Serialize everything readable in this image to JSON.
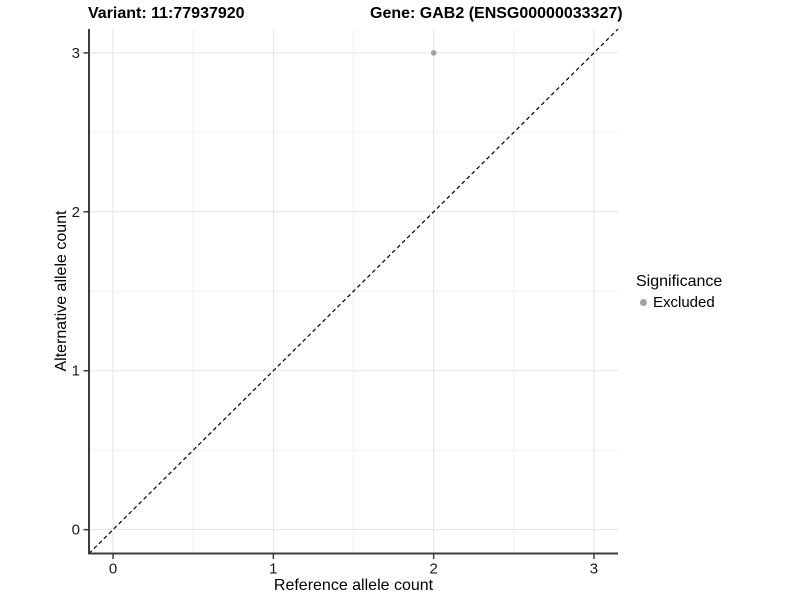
{
  "chart_data": {
    "type": "scatter",
    "title_left": "Variant: 11:77937920",
    "title_right": "Gene: GAB2 (ENSG00000033327)",
    "xlabel": "Reference allele count",
    "ylabel": "Alternative allele count",
    "xlim": [
      -0.15,
      3.15
    ],
    "ylim": [
      -0.15,
      3.15
    ],
    "xticks": [
      0,
      1,
      2,
      3
    ],
    "yticks": [
      0,
      1,
      2,
      3
    ],
    "minor_ticks_x": [
      0.5,
      1.5,
      2.5
    ],
    "minor_ticks_y": [
      0.5,
      1.5,
      2.5
    ],
    "grid": "major and minor gridlines on white background",
    "reference_line": {
      "type": "identity y=x",
      "style": "dashed",
      "color": "#000000"
    },
    "series": [
      {
        "name": "Excluded",
        "color": "#a3a3a3",
        "points": [
          {
            "x": 2,
            "y": 3
          }
        ]
      }
    ],
    "legend": {
      "title": "Significance",
      "position": "right",
      "items": [
        {
          "label": "Excluded",
          "color": "#a3a3a3",
          "marker": "circle"
        }
      ]
    },
    "colors": {
      "axis_line": "#3c3c3c",
      "tick_label": "#1a1a1a",
      "grid_major": "#e3e3e3",
      "grid_minor": "#f0f0f0",
      "point": "#a3a3a3"
    }
  }
}
